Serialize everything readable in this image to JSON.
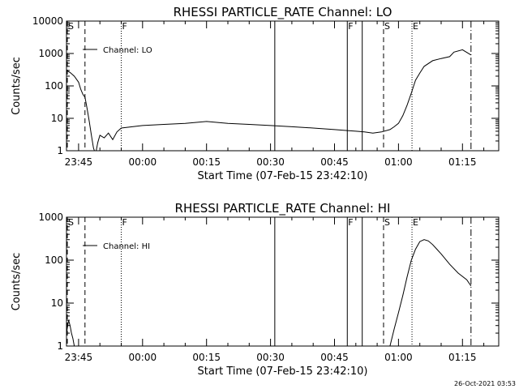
{
  "chart_data": [
    {
      "type": "line",
      "title": "RHESSI PARTICLE_RATE Channel: LO",
      "xlabel": "Start Time (07-Feb-15 23:42:10)",
      "ylabel": "Counts/sec",
      "yscale": "log",
      "ylim": [
        1,
        10000
      ],
      "xlim": [
        "23:42:10",
        "01:23:30"
      ],
      "xtick_labels": [
        "23:45",
        "00:00",
        "00:15",
        "00:30",
        "00:45",
        "01:00",
        "01:15"
      ],
      "ytick_labels": [
        "1",
        "10",
        "100",
        "1000",
        "10000"
      ],
      "legend": {
        "label": "Channel: LO",
        "placement": "top-left"
      },
      "markers": [
        {
          "label": "S",
          "time": "23:42:10",
          "style": "dashed"
        },
        {
          "label": "",
          "time": "23:46:30",
          "style": "dashed"
        },
        {
          "label": "F",
          "time": "23:55:00",
          "style": "dotted"
        },
        {
          "label": "",
          "time": "00:31:00",
          "style": "solid"
        },
        {
          "label": "F",
          "time": "00:48:00",
          "style": "solid"
        },
        {
          "label": "",
          "time": "00:51:30",
          "style": "solid"
        },
        {
          "label": "S",
          "time": "00:56:30",
          "style": "dashed"
        },
        {
          "label": "E",
          "time": "01:03:10",
          "style": "dotted"
        },
        {
          "label": "",
          "time": "01:17:00",
          "style": "dashdot"
        }
      ],
      "series": [
        {
          "x": [
            "23:42:10",
            "23:43:00",
            "23:44:00",
            "23:45:00",
            "23:45:30",
            "23:46:00",
            "23:46:30",
            "23:47:00",
            "23:47:30",
            "23:48:00",
            "23:48:30",
            "23:49:00",
            "23:49:30",
            "23:50:00",
            "23:51:00",
            "23:52:00",
            "23:53:00",
            "23:54:00",
            "23:55:00",
            "00:00:00",
            "00:05:00",
            "00:10:00",
            "00:15:00",
            "00:20:00",
            "00:25:00",
            "00:30:00",
            "00:35:00",
            "00:40:00",
            "00:45:00",
            "00:48:00",
            "00:50:00",
            "00:52:00",
            "00:54:00",
            "00:56:00",
            "00:58:00",
            "00:59:00",
            "01:00:00",
            "01:01:00",
            "01:02:00",
            "01:03:00",
            "01:04:00",
            "01:05:00",
            "01:06:00",
            "01:08:00",
            "01:10:00",
            "01:12:00",
            "01:13:00",
            "01:15:00",
            "01:17:00"
          ],
          "y": [
            300,
            260,
            200,
            130,
            80,
            55,
            45,
            20,
            8,
            3,
            1.2,
            0.8,
            1.8,
            3,
            2.5,
            3.5,
            2.2,
            3.8,
            5,
            6,
            6.5,
            7,
            8,
            7,
            6.5,
            6,
            5.5,
            5,
            4.5,
            4.2,
            4,
            3.8,
            3.5,
            3.8,
            4.5,
            5.5,
            7,
            12,
            25,
            60,
            150,
            250,
            400,
            600,
            700,
            800,
            1100,
            1300,
            900
          ]
        }
      ]
    },
    {
      "type": "line",
      "title": "RHESSI PARTICLE_RATE Channel: HI",
      "xlabel": "Start Time (07-Feb-15 23:42:10)",
      "ylabel": "Counts/sec",
      "yscale": "log",
      "ylim": [
        1,
        1000
      ],
      "xlim": [
        "23:42:10",
        "01:23:30"
      ],
      "xtick_labels": [
        "23:45",
        "00:00",
        "00:15",
        "00:30",
        "00:45",
        "01:00",
        "01:15"
      ],
      "ytick_labels": [
        "1",
        "10",
        "100",
        "1000"
      ],
      "legend": {
        "label": "Channel: HI",
        "placement": "top-left"
      },
      "markers": [
        {
          "label": "S",
          "time": "23:42:10",
          "style": "dashed"
        },
        {
          "label": "",
          "time": "23:46:30",
          "style": "dashed"
        },
        {
          "label": "F",
          "time": "23:55:00",
          "style": "dotted"
        },
        {
          "label": "",
          "time": "00:31:00",
          "style": "solid"
        },
        {
          "label": "F",
          "time": "00:48:00",
          "style": "solid"
        },
        {
          "label": "",
          "time": "00:51:30",
          "style": "solid"
        },
        {
          "label": "S",
          "time": "00:56:30",
          "style": "dashed"
        },
        {
          "label": "E",
          "time": "01:03:10",
          "style": "dotted"
        },
        {
          "label": "",
          "time": "01:17:00",
          "style": "dashdot"
        }
      ],
      "series": [
        {
          "segments": [
            {
              "x": [
                "23:42:10",
                "23:42:40",
                "23:43:00",
                "23:43:20",
                "23:43:40",
                "23:44:00"
              ],
              "y": [
                2,
                4,
                3,
                2,
                1.5,
                1
              ]
            },
            {
              "x": [
                "00:58:00",
                "00:59:00",
                "01:00:00",
                "01:01:00",
                "01:02:00",
                "01:03:00",
                "01:04:00",
                "01:05:00",
                "01:06:00",
                "01:07:00",
                "01:08:00",
                "01:09:00",
                "01:10:00",
                "01:12:00",
                "01:14:00",
                "01:16:00",
                "01:17:00"
              ],
              "y": [
                1,
                2.5,
                6,
                15,
                40,
                100,
                180,
                270,
                300,
                280,
                230,
                180,
                140,
                80,
                50,
                35,
                25
              ]
            }
          ]
        }
      ]
    }
  ],
  "timestamp": "26-Oct-2021 03:53"
}
